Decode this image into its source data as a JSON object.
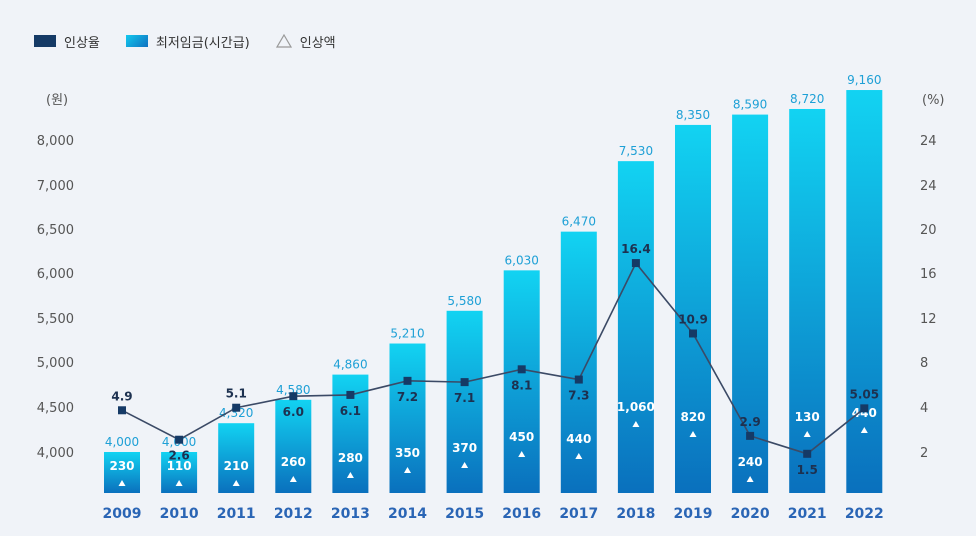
{
  "legend": {
    "rate_label": "인상율",
    "wage_label": "최저임금(시간급)",
    "increase_label": "인상액"
  },
  "chart_data": {
    "type": "bar",
    "categories": [
      "2009",
      "2010",
      "2011",
      "2012",
      "2013",
      "2014",
      "2015",
      "2016",
      "2017",
      "2018",
      "2019",
      "2020",
      "2021",
      "2022"
    ],
    "series": [
      {
        "name": "최저임금(시간급)",
        "type": "bar",
        "axis": "left",
        "values": [
          4000,
          4000,
          4320,
          4580,
          4860,
          5210,
          5580,
          6030,
          6470,
          7530,
          8350,
          8590,
          8720,
          9160
        ],
        "labels": [
          "4,000",
          "4,000",
          "4,320",
          "4,580",
          "4,860",
          "5,210",
          "5,580",
          "6,030",
          "6,470",
          "7,530",
          "8,350",
          "8,590",
          "8,720",
          "9,160"
        ]
      },
      {
        "name": "인상액",
        "type": "marker",
        "values": [
          230,
          110,
          210,
          260,
          280,
          350,
          370,
          450,
          440,
          1060,
          820,
          240,
          130,
          440
        ],
        "labels": [
          "230",
          "110",
          "210",
          "260",
          "280",
          "350",
          "370",
          "450",
          "440",
          "1,060",
          "820",
          "240",
          "130",
          "440"
        ]
      },
      {
        "name": "인상율",
        "type": "line",
        "axis": "right",
        "values": [
          4.9,
          2.6,
          5.1,
          6.0,
          6.1,
          7.2,
          7.1,
          8.1,
          7.3,
          16.4,
          10.9,
          2.9,
          1.5,
          5.05
        ],
        "labels": [
          "4.9",
          "2.6",
          "5.1",
          "6.0",
          "6.1",
          "7.2",
          "7.1",
          "8.1",
          "7.3",
          "16.4",
          "10.9",
          "2.9",
          "1.5",
          "5.05"
        ]
      }
    ],
    "left_axis": {
      "unit": "(원)",
      "ticks": [
        "8,000",
        "7,000",
        "6,500",
        "6,000",
        "5,500",
        "5,000",
        "4,500",
        "4,000"
      ]
    },
    "right_axis": {
      "unit": "(%)",
      "ticks": [
        "24",
        "24",
        "20",
        "16",
        "12",
        "8",
        "4",
        "2"
      ]
    },
    "colors": {
      "bar_top": "#12d3f2",
      "bar_bottom": "#0a70bd",
      "line": "#3b4a66",
      "marker": "#153a66",
      "year": "#2a65b5"
    },
    "grid": false,
    "legend_position": "top-left"
  }
}
